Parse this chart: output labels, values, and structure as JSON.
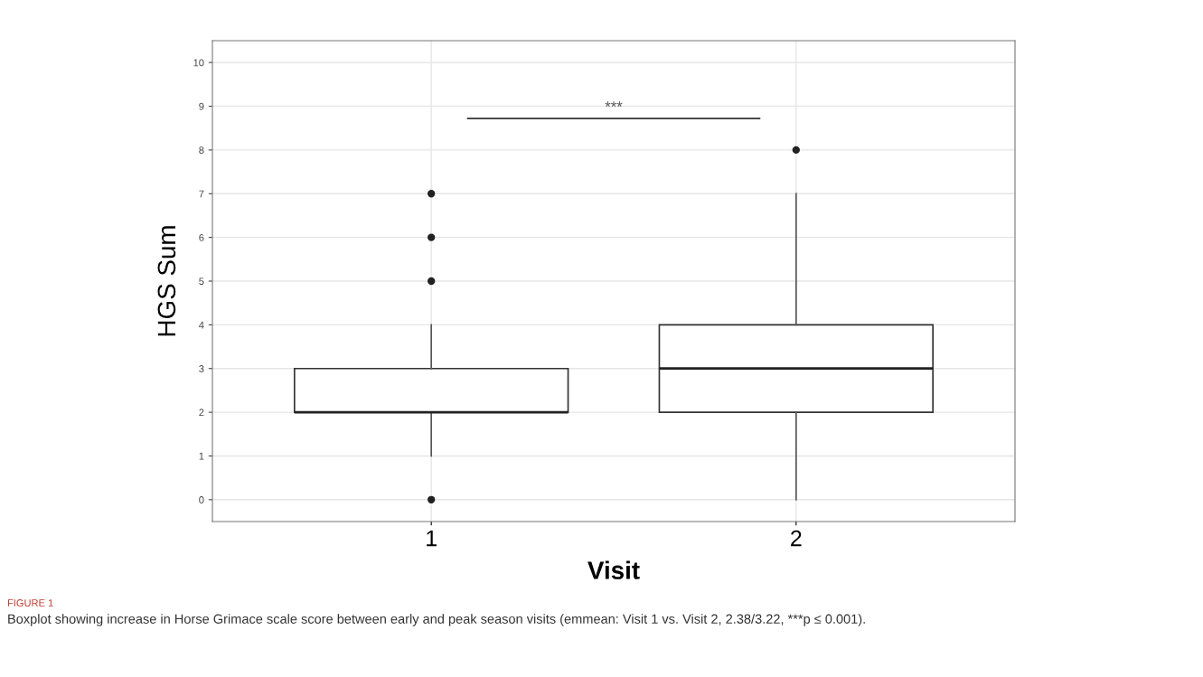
{
  "chart_data": {
    "type": "box",
    "xlabel": "Visit",
    "ylabel": "HGS Sum",
    "categories": [
      "1",
      "2"
    ],
    "boxes": [
      {
        "low": 1,
        "q1": 2,
        "median": 2,
        "q3": 3,
        "high": 4,
        "outliers": [
          0,
          5,
          6,
          7
        ]
      },
      {
        "low": 0,
        "q1": 2,
        "median": 3,
        "q3": 4,
        "high": 7,
        "outliers": [
          8
        ]
      }
    ],
    "ylim": [
      -0.5,
      10.5
    ],
    "yticks": [
      0,
      1,
      2,
      3,
      4,
      5,
      6,
      7,
      8,
      9,
      10
    ],
    "grid": true,
    "annotations": [
      "***",
      "FIGURE 1",
      "Boxplot showing increase in Horse Grimace scale score between early and peak season visits (emmean: Visit 1 vs. Visit 2, 2.38/3.22, ***p ≤ 0.001)."
    ]
  }
}
